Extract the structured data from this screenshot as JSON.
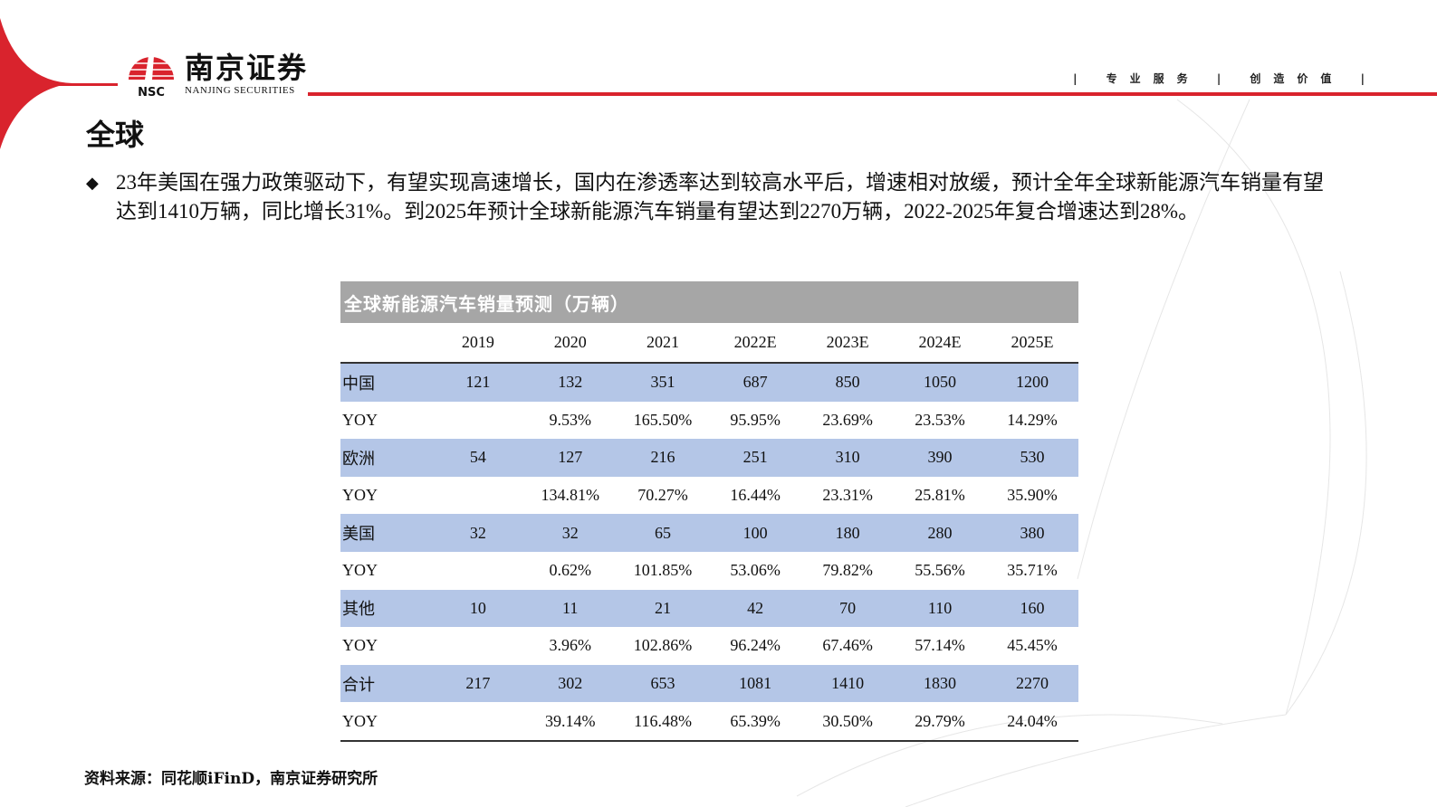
{
  "brand": {
    "name_cn": "南京证券",
    "name_en": "NANJING SECURITIES",
    "abbr": "NSC",
    "color": "#d9232d"
  },
  "slogan": "| 专业服务 | 创造价值 |",
  "title": "全球",
  "bullet": "23年美国在强力政策驱动下，有望实现高速增长，国内在渗透率达到较高水平后，增速相对放缓，预计全年全球新能源汽车销量有望达到1410万辆，同比增长31%。到2025年预计全球新能源汽车销量有望达到2270万辆，2022-2025年复合增速达到28%。",
  "table": {
    "title": "全球新能源汽车销量预测（万辆）",
    "header_fill": "#a6a6a6",
    "band_fill": "#b4c6e7",
    "columns": [
      "",
      "2019",
      "2020",
      "2021",
      "2022E",
      "2023E",
      "2024E",
      "2025E"
    ],
    "rows": [
      [
        "中国",
        "121",
        "132",
        "351",
        "687",
        "850",
        "1050",
        "1200"
      ],
      [
        "YOY",
        "",
        "9.53%",
        "165.50%",
        "95.95%",
        "23.69%",
        "23.53%",
        "14.29%"
      ],
      [
        "欧洲",
        "54",
        "127",
        "216",
        "251",
        "310",
        "390",
        "530"
      ],
      [
        "YOY",
        "",
        "134.81%",
        "70.27%",
        "16.44%",
        "23.31%",
        "25.81%",
        "35.90%"
      ],
      [
        "美国",
        "32",
        "32",
        "65",
        "100",
        "180",
        "280",
        "380"
      ],
      [
        "YOY",
        "",
        "0.62%",
        "101.85%",
        "53.06%",
        "79.82%",
        "55.56%",
        "35.71%"
      ],
      [
        "其他",
        "10",
        "11",
        "21",
        "42",
        "70",
        "110",
        "160"
      ],
      [
        "YOY",
        "",
        "3.96%",
        "102.86%",
        "96.24%",
        "67.46%",
        "57.14%",
        "45.45%"
      ],
      [
        "合计",
        "217",
        "302",
        "653",
        "1081",
        "1410",
        "1830",
        "2270"
      ],
      [
        "YOY",
        "",
        "39.14%",
        "116.48%",
        "65.39%",
        "30.50%",
        "29.79%",
        "24.04%"
      ]
    ]
  },
  "source": "资料来源：同花顺iFinD，南京证券研究所"
}
